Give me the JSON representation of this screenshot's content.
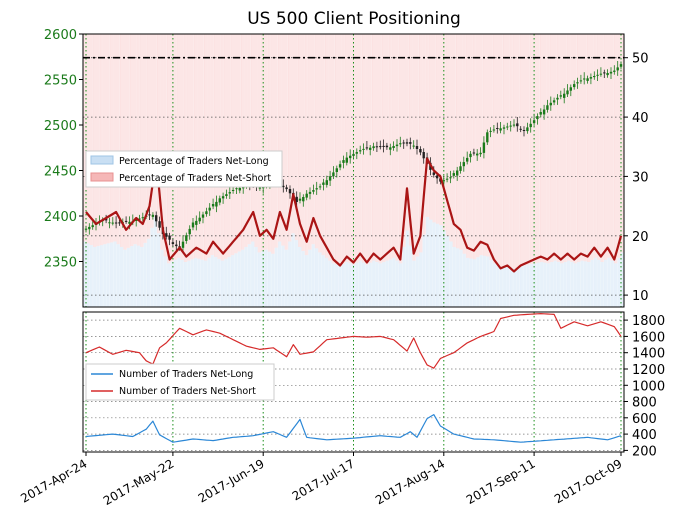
{
  "chart_data": {
    "type": "line",
    "title": "US 500 Client Positioning",
    "x_tick_labels": [
      "2017-Apr-24",
      "2017-May-22",
      "2017-Jun-19",
      "2017-Jul-17",
      "2017-Aug-14",
      "2017-Sep-11",
      "2017-Oct-09"
    ],
    "top_panel": {
      "price_axis": {
        "label": "",
        "ticks": [
          2350,
          2400,
          2450,
          2500,
          2550,
          2600
        ],
        "range": [
          2300,
          2600
        ],
        "side": "left"
      },
      "percent_axis": {
        "label": "",
        "ticks": [
          10,
          20,
          30,
          40,
          50
        ],
        "range": [
          8,
          54
        ],
        "side": "right"
      },
      "reference_line": {
        "value": 50,
        "style": "dash-dot",
        "color": "#000000"
      },
      "legend": {
        "placement": "left-middle",
        "entries": [
          "Percentage of Traders Net-Long",
          "Percentage of Traders Net-Short"
        ],
        "colors": [
          "#c9dff3",
          "#f5b7b7"
        ]
      },
      "price_series": {
        "name": "US 500 price (candlesticks)",
        "up_color": "#1a7a1a",
        "down_color": "#222222",
        "keypoints": [
          [
            0,
            2387
          ],
          [
            5,
            2395
          ],
          [
            10,
            2392
          ],
          [
            15,
            2396
          ],
          [
            20,
            2402
          ],
          [
            23,
            2380
          ],
          [
            26,
            2370
          ],
          [
            28,
            2365
          ],
          [
            32,
            2392
          ],
          [
            36,
            2405
          ],
          [
            40,
            2420
          ],
          [
            44,
            2428
          ],
          [
            48,
            2435
          ],
          [
            52,
            2432
          ],
          [
            56,
            2440
          ],
          [
            60,
            2430
          ],
          [
            63,
            2415
          ],
          [
            66,
            2425
          ],
          [
            70,
            2432
          ],
          [
            74,
            2448
          ],
          [
            78,
            2465
          ],
          [
            82,
            2472
          ],
          [
            86,
            2477
          ],
          [
            90,
            2475
          ],
          [
            94,
            2480
          ],
          [
            98,
            2478
          ],
          [
            100,
            2470
          ],
          [
            103,
            2450
          ],
          [
            106,
            2438
          ],
          [
            109,
            2442
          ],
          [
            112,
            2455
          ],
          [
            115,
            2468
          ],
          [
            118,
            2470
          ],
          [
            120,
            2492
          ],
          [
            124,
            2497
          ],
          [
            128,
            2500
          ],
          [
            131,
            2494
          ],
          [
            134,
            2505
          ],
          [
            138,
            2522
          ],
          [
            142,
            2532
          ],
          [
            146,
            2545
          ],
          [
            150,
            2552
          ],
          [
            154,
            2556
          ],
          [
            158,
            2560
          ],
          [
            161,
            2570
          ]
        ]
      },
      "net_long_pct_series": {
        "name": "Percentage of Traders Net-Long",
        "color": "#aa1515",
        "keypoints": [
          [
            0,
            24
          ],
          [
            3,
            22
          ],
          [
            6,
            23
          ],
          [
            9,
            24
          ],
          [
            12,
            21
          ],
          [
            15,
            23
          ],
          [
            17,
            22
          ],
          [
            19,
            25
          ],
          [
            21,
            33
          ],
          [
            23,
            21
          ],
          [
            25,
            16
          ],
          [
            28,
            18
          ],
          [
            30,
            16.5
          ],
          [
            33,
            18
          ],
          [
            36,
            17
          ],
          [
            38,
            19
          ],
          [
            41,
            17
          ],
          [
            44,
            19
          ],
          [
            47,
            21
          ],
          [
            50,
            24
          ],
          [
            52,
            20
          ],
          [
            54,
            21
          ],
          [
            56,
            19.5
          ],
          [
            58,
            24
          ],
          [
            60,
            21
          ],
          [
            62,
            27
          ],
          [
            64,
            22
          ],
          [
            66,
            19
          ],
          [
            68,
            23
          ],
          [
            70,
            20
          ],
          [
            72,
            18
          ],
          [
            74,
            16
          ],
          [
            76,
            15
          ],
          [
            78,
            16.5
          ],
          [
            80,
            15.5
          ],
          [
            82,
            17
          ],
          [
            84,
            15.5
          ],
          [
            86,
            17
          ],
          [
            88,
            16
          ],
          [
            90,
            17
          ],
          [
            92,
            18
          ],
          [
            94,
            16
          ],
          [
            96,
            28
          ],
          [
            98,
            17
          ],
          [
            100,
            20
          ],
          [
            102,
            33
          ],
          [
            104,
            31
          ],
          [
            106,
            30
          ],
          [
            108,
            26
          ],
          [
            110,
            22
          ],
          [
            112,
            21
          ],
          [
            114,
            18
          ],
          [
            116,
            17.5
          ],
          [
            118,
            19
          ],
          [
            120,
            18.5
          ],
          [
            122,
            16
          ],
          [
            124,
            14.5
          ],
          [
            126,
            15
          ],
          [
            128,
            14
          ],
          [
            130,
            15
          ],
          [
            132,
            15.5
          ],
          [
            134,
            16
          ],
          [
            136,
            16.5
          ],
          [
            138,
            16
          ],
          [
            140,
            17
          ],
          [
            142,
            16
          ],
          [
            144,
            17
          ],
          [
            146,
            16
          ],
          [
            148,
            17
          ],
          [
            150,
            16.5
          ],
          [
            152,
            18
          ],
          [
            154,
            16.5
          ],
          [
            156,
            18
          ],
          [
            158,
            16
          ],
          [
            160,
            20
          ]
        ]
      }
    },
    "bottom_panel": {
      "axis": {
        "label": "",
        "ticks": [
          200,
          400,
          600,
          800,
          1000,
          1200,
          1400,
          1600,
          1800
        ],
        "range": [
          180,
          1900
        ],
        "side": "right"
      },
      "legend": {
        "placement": "left-middle",
        "entries": [
          "Number of Traders Net-Long",
          "Number of Traders Net-Short"
        ],
        "colors": [
          "#2b87d6",
          "#d62b2b"
        ]
      },
      "net_long_count_series": {
        "name": "Number of Traders Net-Long",
        "color": "#2b87d6",
        "keypoints": [
          [
            0,
            370
          ],
          [
            8,
            400
          ],
          [
            14,
            370
          ],
          [
            18,
            460
          ],
          [
            20,
            560
          ],
          [
            22,
            390
          ],
          [
            26,
            300
          ],
          [
            32,
            340
          ],
          [
            38,
            320
          ],
          [
            44,
            360
          ],
          [
            50,
            380
          ],
          [
            56,
            430
          ],
          [
            60,
            360
          ],
          [
            64,
            580
          ],
          [
            66,
            360
          ],
          [
            72,
            330
          ],
          [
            80,
            350
          ],
          [
            88,
            380
          ],
          [
            94,
            360
          ],
          [
            97,
            430
          ],
          [
            99,
            360
          ],
          [
            102,
            590
          ],
          [
            104,
            640
          ],
          [
            106,
            500
          ],
          [
            110,
            400
          ],
          [
            116,
            340
          ],
          [
            122,
            330
          ],
          [
            130,
            300
          ],
          [
            140,
            330
          ],
          [
            150,
            360
          ],
          [
            156,
            330
          ],
          [
            160,
            380
          ]
        ]
      },
      "net_short_count_series": {
        "name": "Number of Traders Net-Short",
        "color": "#d62b2b",
        "keypoints": [
          [
            0,
            1400
          ],
          [
            4,
            1470
          ],
          [
            8,
            1380
          ],
          [
            12,
            1430
          ],
          [
            16,
            1400
          ],
          [
            18,
            1300
          ],
          [
            20,
            1260
          ],
          [
            22,
            1460
          ],
          [
            24,
            1520
          ],
          [
            28,
            1700
          ],
          [
            32,
            1620
          ],
          [
            36,
            1680
          ],
          [
            40,
            1640
          ],
          [
            44,
            1560
          ],
          [
            48,
            1480
          ],
          [
            52,
            1440
          ],
          [
            56,
            1460
          ],
          [
            60,
            1350
          ],
          [
            62,
            1500
          ],
          [
            64,
            1380
          ],
          [
            68,
            1410
          ],
          [
            72,
            1560
          ],
          [
            76,
            1580
          ],
          [
            80,
            1600
          ],
          [
            84,
            1590
          ],
          [
            88,
            1600
          ],
          [
            92,
            1560
          ],
          [
            96,
            1420
          ],
          [
            98,
            1580
          ],
          [
            100,
            1400
          ],
          [
            102,
            1250
          ],
          [
            104,
            1210
          ],
          [
            106,
            1330
          ],
          [
            110,
            1400
          ],
          [
            114,
            1520
          ],
          [
            118,
            1600
          ],
          [
            122,
            1660
          ],
          [
            124,
            1820
          ],
          [
            128,
            1860
          ],
          [
            132,
            1870
          ],
          [
            136,
            1880
          ],
          [
            140,
            1870
          ],
          [
            142,
            1700
          ],
          [
            146,
            1780
          ],
          [
            150,
            1730
          ],
          [
            154,
            1780
          ],
          [
            158,
            1720
          ],
          [
            160,
            1600
          ]
        ]
      }
    }
  }
}
